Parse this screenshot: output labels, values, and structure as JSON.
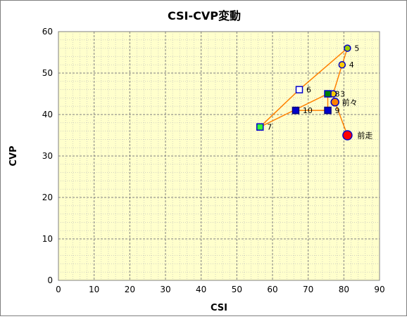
{
  "chart_data": {
    "type": "scatter",
    "title": "CSI-CVP変動",
    "xlabel": "CSI",
    "ylabel": "CVP",
    "xlim": [
      0,
      90
    ],
    "ylim": [
      0,
      60
    ],
    "xticks": [
      0,
      10,
      20,
      30,
      40,
      50,
      60,
      70,
      80,
      90
    ],
    "yticks": [
      0,
      10,
      20,
      30,
      40,
      50,
      60
    ],
    "grid": {
      "major": true,
      "minor": true
    },
    "plot_background": "#ffffcc",
    "line_color": "#ff8000",
    "path_order": [
      "前走",
      "前々",
      "3",
      "4",
      "5",
      "6",
      "7",
      "8",
      "9",
      "10"
    ],
    "points": [
      {
        "label": "前走",
        "x": 81,
        "y": 35,
        "marker": "circle",
        "fill": "#ff0000",
        "stroke": "#0000cc"
      },
      {
        "label": "前々",
        "x": 77.5,
        "y": 43,
        "marker": "circle",
        "fill": "#ff8000",
        "stroke": "#0000cc"
      },
      {
        "label": "3",
        "x": 77,
        "y": 45,
        "marker": "circle",
        "fill": "#ffcc00",
        "stroke": "#0000cc"
      },
      {
        "label": "4",
        "x": 79.5,
        "y": 52,
        "marker": "circle",
        "fill": "#ffcc00",
        "stroke": "#0000cc"
      },
      {
        "label": "5",
        "x": 81,
        "y": 56,
        "marker": "circle",
        "fill": "#99cc00",
        "stroke": "#0000cc"
      },
      {
        "label": "6",
        "x": 67.5,
        "y": 46,
        "marker": "square",
        "fill": "#ffffff",
        "stroke": "#0000cc"
      },
      {
        "label": "7",
        "x": 56.5,
        "y": 37,
        "marker": "square",
        "fill": "#33ff33",
        "stroke": "#0000cc"
      },
      {
        "label": "8",
        "x": 75.5,
        "y": 45,
        "marker": "square",
        "fill": "#008000",
        "stroke": "#0000cc"
      },
      {
        "label": "9",
        "x": 75.5,
        "y": 41,
        "marker": "square",
        "fill": "#0000cc",
        "stroke": "#000080"
      },
      {
        "label": "10",
        "x": 66.5,
        "y": 41,
        "marker": "square",
        "fill": "#0000cc",
        "stroke": "#000080"
      }
    ]
  }
}
